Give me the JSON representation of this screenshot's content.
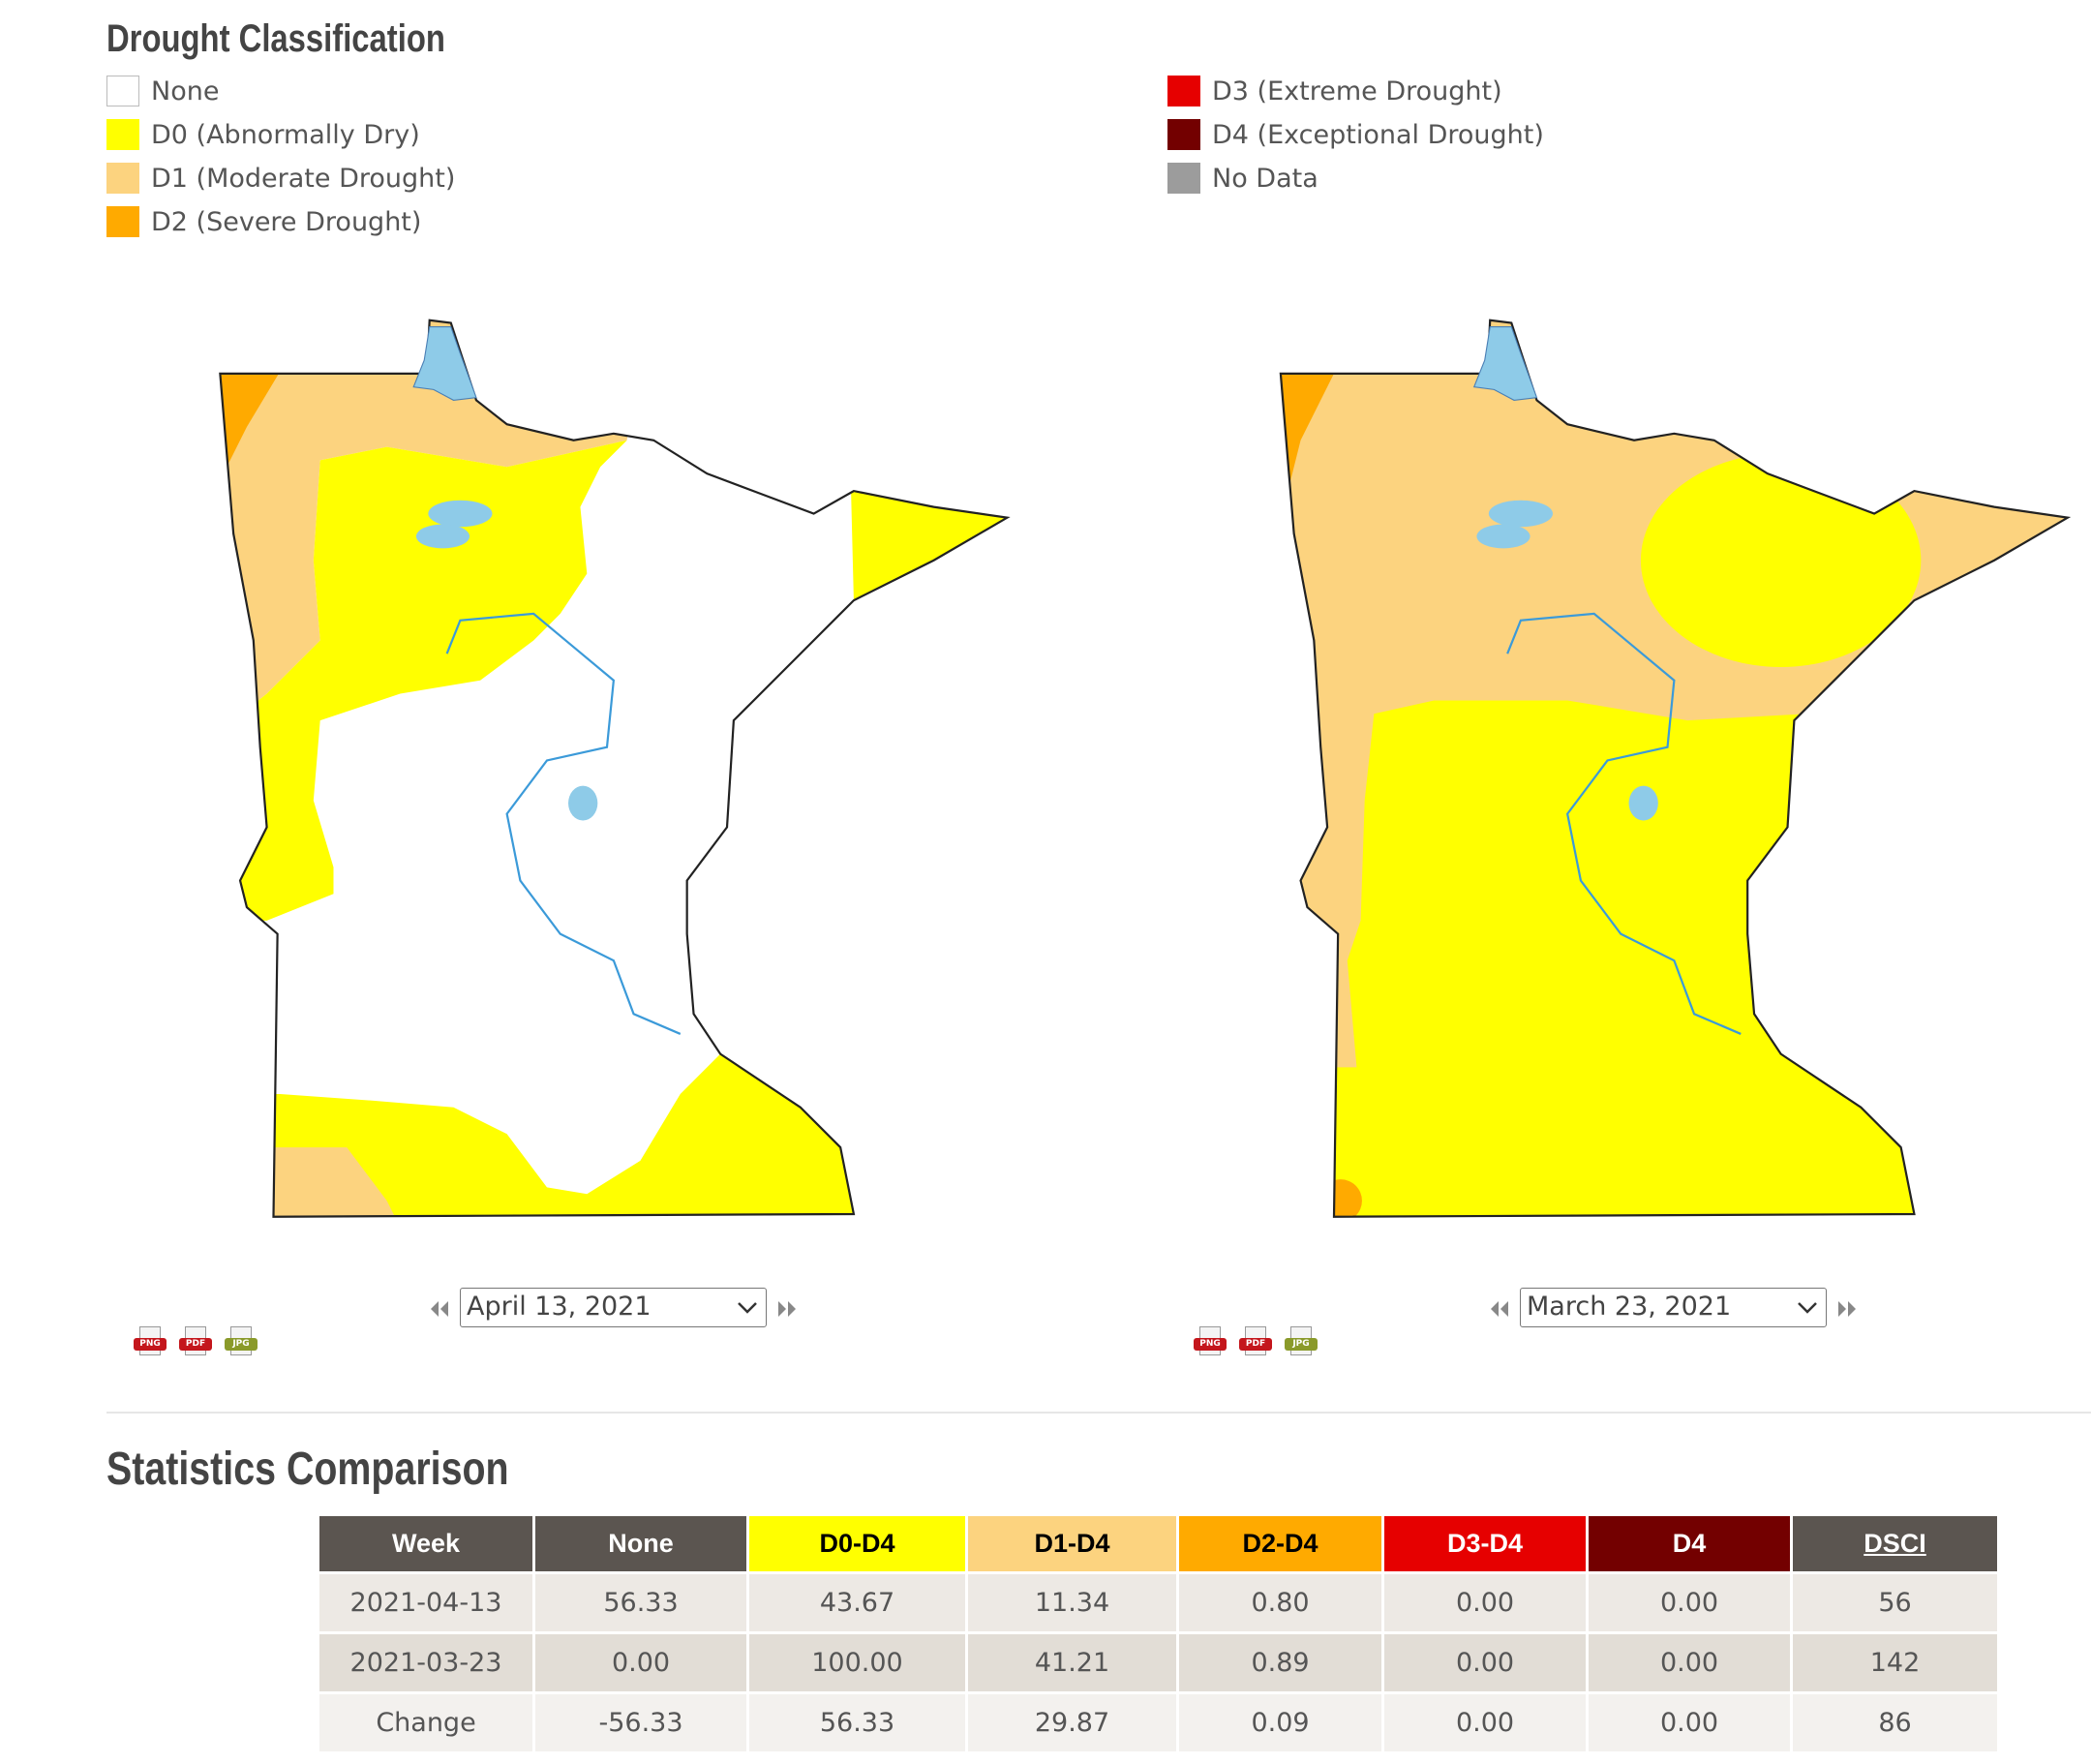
{
  "legend": {
    "title": "Drought Classification",
    "items": [
      {
        "label": "None",
        "color": "#ffffff"
      },
      {
        "label": "D0 (Abnormally Dry)",
        "color": "#ffff00"
      },
      {
        "label": "D1 (Moderate Drought)",
        "color": "#fcd37f"
      },
      {
        "label": "D2 (Severe Drought)",
        "color": "#ffaa00"
      },
      {
        "label": "D3 (Extreme Drought)",
        "color": "#e60000"
      },
      {
        "label": "D4 (Exceptional Drought)",
        "color": "#730000"
      },
      {
        "label": "No Data",
        "color": "#9c9c9c"
      }
    ]
  },
  "maps": [
    {
      "date": "April 13, 2021"
    },
    {
      "date": "March 23, 2021"
    }
  ],
  "downloads": [
    {
      "label": "PNG",
      "color": "#c4161c"
    },
    {
      "label": "PDF",
      "color": "#c4161c"
    },
    {
      "label": "JPG",
      "color": "#8a9a2a"
    }
  ],
  "statistics": {
    "title": "Statistics Comparison",
    "columns": [
      {
        "label": "Week",
        "color": "#5b5550",
        "text_color": "#ffffff"
      },
      {
        "label": "None",
        "color": "#5b5550",
        "text_color": "#ffffff"
      },
      {
        "label": "D0-D4",
        "color": "#ffff00",
        "text_color": "#000000"
      },
      {
        "label": "D1-D4",
        "color": "#fcd37f",
        "text_color": "#000000"
      },
      {
        "label": "D2-D4",
        "color": "#ffaa00",
        "text_color": "#000000"
      },
      {
        "label": "D3-D4",
        "color": "#e60000",
        "text_color": "#ffffff"
      },
      {
        "label": "D4",
        "color": "#730000",
        "text_color": "#ffffff"
      },
      {
        "label": "DSCI",
        "color": "#5b5550",
        "text_color": "#ffffff"
      }
    ],
    "rows": [
      [
        "2021-04-13",
        "56.33",
        "43.67",
        "11.34",
        "0.80",
        "0.00",
        "0.00",
        "56"
      ],
      [
        "2021-03-23",
        "0.00",
        "100.00",
        "41.21",
        "0.89",
        "0.00",
        "0.00",
        "142"
      ],
      [
        "Change",
        "-56.33",
        "56.33",
        "29.87",
        "0.09",
        "0.00",
        "0.00",
        "86"
      ]
    ]
  }
}
